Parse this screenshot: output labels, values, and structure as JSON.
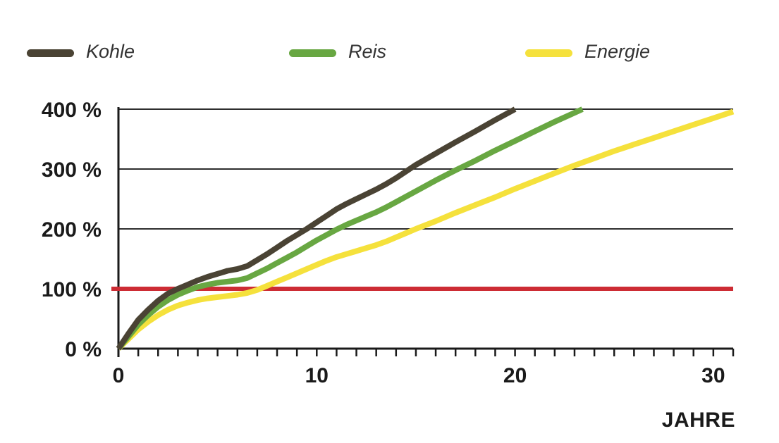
{
  "colors": {
    "kohle": "#4a4334",
    "reis": "#68a742",
    "energie": "#f5e13c",
    "reference": "#cd2c34",
    "grid": "#2e2e2e",
    "axis": "#1a1a1a",
    "text": "#1a1a1a"
  },
  "legend": [
    {
      "label": "Kohle",
      "color": "#4a4334"
    },
    {
      "label": "Reis",
      "color": "#68a742"
    },
    {
      "label": "Energie",
      "color": "#f5e13c"
    }
  ],
  "chart_data": {
    "type": "line",
    "title": "",
    "xlabel": "JAHRE",
    "ylabel": "",
    "xlim": [
      0,
      31
    ],
    "ylim": [
      0,
      400
    ],
    "grid_y": [
      200,
      300,
      400
    ],
    "x_minor_step": 1,
    "x_ticks": [
      {
        "value": 0,
        "label": "0"
      },
      {
        "value": 10,
        "label": "10"
      },
      {
        "value": 20,
        "label": "20"
      },
      {
        "value": 30,
        "label": "30"
      }
    ],
    "y_ticks": [
      {
        "value": 0,
        "label": "0 %"
      },
      {
        "value": 100,
        "label": "100 %"
      },
      {
        "value": 200,
        "label": "200 %"
      },
      {
        "value": 300,
        "label": "300 %"
      },
      {
        "value": 400,
        "label": "400 %"
      }
    ],
    "reference_line": {
      "y": 100,
      "color": "#cd2c34"
    },
    "series": [
      {
        "name": "Kohle",
        "color": "#4a4334",
        "points": [
          [
            0,
            0
          ],
          [
            0.5,
            25
          ],
          [
            1,
            48
          ],
          [
            1.5,
            65
          ],
          [
            2,
            80
          ],
          [
            2.5,
            92
          ],
          [
            3,
            100
          ],
          [
            3.5,
            107
          ],
          [
            4,
            114
          ],
          [
            4.5,
            120
          ],
          [
            5,
            125
          ],
          [
            5.5,
            130
          ],
          [
            6,
            133
          ],
          [
            6.5,
            138
          ],
          [
            7,
            148
          ],
          [
            7.5,
            158
          ],
          [
            8,
            169
          ],
          [
            8.5,
            180
          ],
          [
            9,
            190
          ],
          [
            9.5,
            200
          ],
          [
            10,
            211
          ],
          [
            10.5,
            222
          ],
          [
            11,
            233
          ],
          [
            11.5,
            242
          ],
          [
            12,
            250
          ],
          [
            12.5,
            258
          ],
          [
            13,
            266
          ],
          [
            13.5,
            275
          ],
          [
            14,
            285
          ],
          [
            14.5,
            296
          ],
          [
            15,
            307
          ],
          [
            16,
            326
          ],
          [
            17,
            345
          ],
          [
            18,
            363
          ],
          [
            19,
            382
          ],
          [
            20,
            400
          ]
        ]
      },
      {
        "name": "Reis",
        "color": "#68a742",
        "points": [
          [
            0,
            0
          ],
          [
            0.5,
            20
          ],
          [
            1,
            40
          ],
          [
            1.5,
            56
          ],
          [
            2,
            70
          ],
          [
            2.5,
            81
          ],
          [
            3,
            90
          ],
          [
            3.5,
            97
          ],
          [
            4,
            103
          ],
          [
            4.5,
            107
          ],
          [
            5,
            110
          ],
          [
            5.5,
            112
          ],
          [
            6,
            114
          ],
          [
            6.5,
            118
          ],
          [
            7,
            126
          ],
          [
            7.5,
            134
          ],
          [
            8,
            143
          ],
          [
            8.5,
            152
          ],
          [
            9,
            161
          ],
          [
            9.5,
            171
          ],
          [
            10,
            181
          ],
          [
            10.5,
            190
          ],
          [
            11,
            199
          ],
          [
            11.5,
            207
          ],
          [
            12,
            214
          ],
          [
            12.5,
            221
          ],
          [
            13,
            228
          ],
          [
            13.5,
            236
          ],
          [
            14,
            245
          ],
          [
            14.5,
            254
          ],
          [
            15,
            263
          ],
          [
            16,
            281
          ],
          [
            17,
            298
          ],
          [
            18,
            314
          ],
          [
            19,
            331
          ],
          [
            20,
            347
          ],
          [
            21,
            363
          ],
          [
            22,
            379
          ],
          [
            23,
            394
          ],
          [
            23.4,
            400
          ]
        ]
      },
      {
        "name": "Energie",
        "color": "#f5e13c",
        "points": [
          [
            0,
            0
          ],
          [
            0.5,
            16
          ],
          [
            1,
            32
          ],
          [
            1.5,
            45
          ],
          [
            2,
            56
          ],
          [
            2.5,
            65
          ],
          [
            3,
            72
          ],
          [
            3.5,
            77
          ],
          [
            4,
            81
          ],
          [
            4.5,
            84
          ],
          [
            5,
            86
          ],
          [
            5.5,
            88
          ],
          [
            6,
            90
          ],
          [
            6.5,
            93
          ],
          [
            7,
            98
          ],
          [
            7.5,
            105
          ],
          [
            8,
            112
          ],
          [
            8.5,
            119
          ],
          [
            9,
            126
          ],
          [
            9.5,
            133
          ],
          [
            10,
            140
          ],
          [
            10.5,
            147
          ],
          [
            11,
            153
          ],
          [
            11.5,
            158
          ],
          [
            12,
            163
          ],
          [
            12.5,
            168
          ],
          [
            13,
            173
          ],
          [
            13.5,
            179
          ],
          [
            14,
            186
          ],
          [
            14.5,
            193
          ],
          [
            15,
            200
          ],
          [
            16,
            213
          ],
          [
            17,
            227
          ],
          [
            18,
            240
          ],
          [
            19,
            253
          ],
          [
            20,
            267
          ],
          [
            21,
            280
          ],
          [
            22,
            293
          ],
          [
            23,
            306
          ],
          [
            24,
            318
          ],
          [
            25,
            330
          ],
          [
            26,
            341
          ],
          [
            27,
            352
          ],
          [
            28,
            363
          ],
          [
            29,
            374
          ],
          [
            30,
            385
          ],
          [
            31,
            396
          ]
        ]
      }
    ]
  }
}
